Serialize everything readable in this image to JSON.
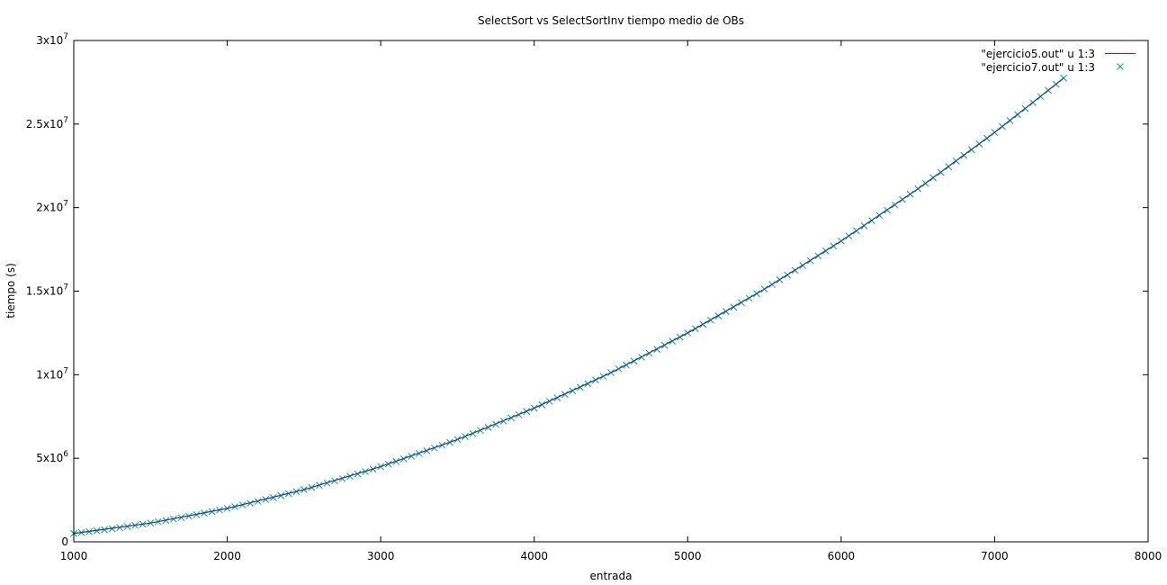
{
  "chart_data": {
    "type": "line",
    "title": "SelectSort vs SelectSortInv tiempo medio de OBs",
    "xlabel": "entrada",
    "ylabel": "tiempo (s)",
    "xlim": [
      1000,
      8000
    ],
    "ylim": [
      0,
      30000000
    ],
    "grid": false,
    "legend_position": "top-right",
    "x_ticks": [
      {
        "value": 1000,
        "label": "1000"
      },
      {
        "value": 2000,
        "label": "2000"
      },
      {
        "value": 3000,
        "label": "3000"
      },
      {
        "value": 4000,
        "label": "4000"
      },
      {
        "value": 5000,
        "label": "5000"
      },
      {
        "value": 6000,
        "label": "6000"
      },
      {
        "value": 7000,
        "label": "7000"
      },
      {
        "value": 8000,
        "label": "8000"
      }
    ],
    "y_ticks": [
      {
        "value": 0,
        "base": "0",
        "exp": ""
      },
      {
        "value": 5000000,
        "base": "5x10",
        "exp": "6"
      },
      {
        "value": 10000000,
        "base": "1x10",
        "exp": "7"
      },
      {
        "value": 15000000,
        "base": "1.5x10",
        "exp": "7"
      },
      {
        "value": 20000000,
        "base": "2x10",
        "exp": "7"
      },
      {
        "value": 25000000,
        "base": "2.5x10",
        "exp": "7"
      },
      {
        "value": 30000000,
        "base": "3x10",
        "exp": "7"
      }
    ],
    "series": [
      {
        "name": "\"ejercicio5.out\" u 1:3",
        "style": "line",
        "color": "#9400d3",
        "overlay_color": "#1f3a93",
        "x": [
          1000,
          1500,
          2000,
          2500,
          3000,
          3500,
          4000,
          4500,
          5000,
          5500,
          6000,
          6500,
          7000,
          7450
        ],
        "y": [
          500000,
          1120000,
          2000000,
          3120000,
          4500000,
          6120000,
          8000000,
          10120000,
          12500000,
          15120000,
          18000000,
          21120000,
          24500000,
          27750000
        ]
      },
      {
        "name": "\"ejercicio7.out\" u 1:3",
        "style": "points",
        "marker": "x",
        "color": "#009e73",
        "x": [
          1000,
          1050,
          1100,
          1150,
          1200,
          1250,
          1300,
          1350,
          1400,
          1450,
          1500,
          1550,
          1600,
          1650,
          1700,
          1750,
          1800,
          1850,
          1900,
          1950,
          2000,
          2050,
          2100,
          2150,
          2200,
          2250,
          2300,
          2350,
          2400,
          2450,
          2500,
          2550,
          2600,
          2650,
          2700,
          2750,
          2800,
          2850,
          2900,
          2950,
          3000,
          3050,
          3100,
          3150,
          3200,
          3250,
          3300,
          3350,
          3400,
          3450,
          3500,
          3550,
          3600,
          3650,
          3700,
          3750,
          3800,
          3850,
          3900,
          3950,
          4000,
          4050,
          4100,
          4150,
          4200,
          4250,
          4300,
          4350,
          4400,
          4450,
          4500,
          4550,
          4600,
          4650,
          4700,
          4750,
          4800,
          4850,
          4900,
          4950,
          5000,
          5050,
          5100,
          5150,
          5200,
          5250,
          5300,
          5350,
          5400,
          5450,
          5500,
          5550,
          5600,
          5650,
          5700,
          5750,
          5800,
          5850,
          5900,
          5950,
          6000,
          6050,
          6100,
          6150,
          6200,
          6250,
          6300,
          6350,
          6400,
          6450,
          6500,
          6550,
          6600,
          6650,
          6700,
          6750,
          6800,
          6850,
          6900,
          6950,
          7000,
          7050,
          7100,
          7150,
          7200,
          7250,
          7300,
          7350,
          7400,
          7450
        ],
        "y": [
          500000,
          551250,
          605000,
          661250,
          720000,
          781250,
          845000,
          911250,
          980000,
          1051250,
          1125000,
          1201250,
          1280000,
          1361250,
          1445000,
          1531250,
          1620000,
          1711250,
          1805000,
          1901250,
          2000000,
          2101250,
          2205000,
          2311250,
          2420000,
          2531250,
          2645000,
          2761250,
          2880000,
          3001250,
          3125000,
          3251250,
          3380000,
          3511250,
          3645000,
          3781250,
          3920000,
          4061250,
          4205000,
          4351250,
          4500000,
          4651250,
          4805000,
          4961250,
          5120000,
          5281250,
          5445000,
          5611250,
          5780000,
          5951250,
          6125000,
          6301250,
          6480000,
          6661250,
          6845000,
          7031250,
          7220000,
          7411250,
          7605000,
          7801250,
          8000000,
          8201250,
          8405000,
          8611250,
          8820000,
          9031250,
          9245000,
          9461250,
          9680000,
          9901250,
          10125000,
          10351250,
          10580000,
          10811250,
          11045000,
          11281250,
          11520000,
          11761250,
          12005000,
          12251250,
          12500000,
          12751250,
          13005000,
          13261250,
          13520000,
          13781250,
          14045000,
          14311250,
          14580000,
          14851250,
          15125000,
          15401250,
          15680000,
          15961250,
          16245000,
          16531250,
          16820000,
          17111250,
          17405000,
          17701250,
          18000000,
          18301250,
          18605000,
          18911250,
          19220000,
          19531250,
          19845000,
          20161250,
          20480000,
          20801250,
          21125000,
          21451250,
          21780000,
          22111250,
          22445000,
          22781250,
          23120000,
          23461250,
          23805000,
          24151250,
          24500000,
          24851250,
          25205000,
          25561250,
          25920000,
          26281250,
          26645000,
          27011250,
          27380000,
          27751250
        ]
      }
    ]
  }
}
